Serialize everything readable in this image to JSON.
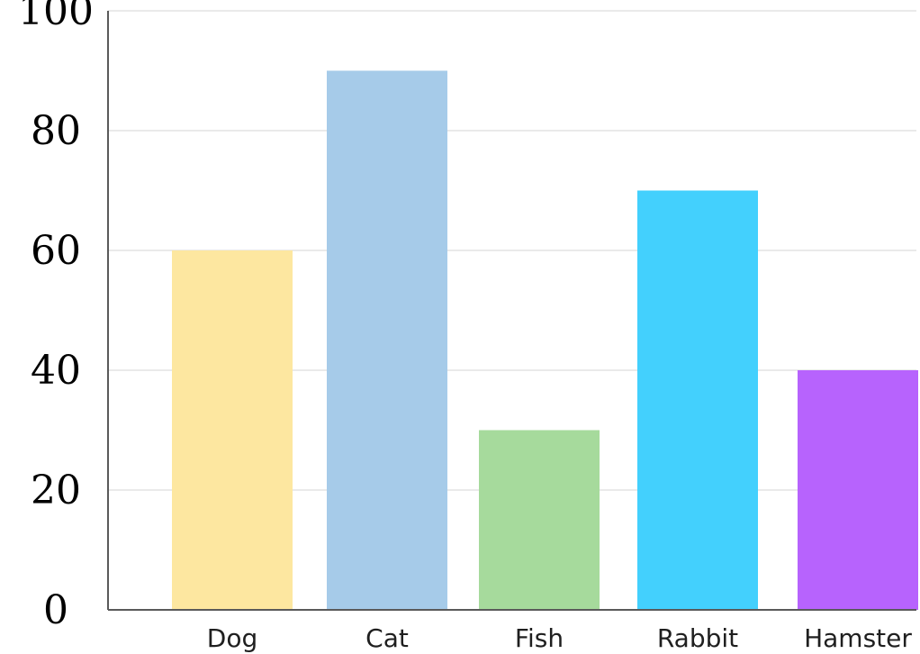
{
  "chart_data": {
    "type": "bar",
    "title": "",
    "xlabel": "",
    "ylabel": "",
    "categories": [
      "Dog",
      "Cat",
      "Fish",
      "Rabbit",
      "Hamster"
    ],
    "values": [
      60,
      90,
      30,
      70,
      40
    ],
    "colors": [
      "#fde7a0",
      "#a6cbe9",
      "#a6da9c",
      "#43d0fd",
      "#b763fd"
    ],
    "ylim": [
      0,
      100
    ],
    "yticks": [
      0,
      20,
      40,
      60,
      80,
      100
    ],
    "ytick_labels": [
      "0",
      "20",
      "40",
      "60",
      "80",
      "100"
    ],
    "grid": true,
    "legend": "none",
    "axis_color": "#5a5a5a",
    "grid_color": "#e3e3e3"
  }
}
